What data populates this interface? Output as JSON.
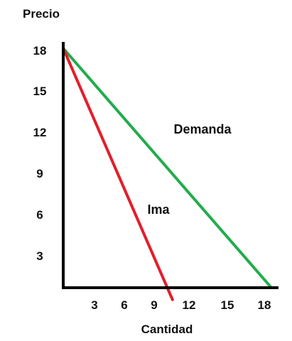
{
  "chart_data": {
    "type": "line",
    "ylabel": "Precio",
    "xlabel": "Cantidad",
    "yticks": [
      "3",
      "6",
      "9",
      "12",
      "15",
      "18"
    ],
    "xticks": [
      "3",
      "6",
      "9",
      "12",
      "15",
      "18"
    ],
    "xlim": [
      0,
      18
    ],
    "ylim": [
      0,
      18
    ],
    "grid": false,
    "legend": "none",
    "series": [
      {
        "name": "Demanda",
        "color": "#22ac4c",
        "points": [
          [
            0,
            18
          ],
          [
            18,
            0
          ]
        ]
      },
      {
        "name": "Ima",
        "color": "#e31e2a",
        "points": [
          [
            0,
            18
          ],
          [
            9,
            0
          ]
        ]
      }
    ]
  }
}
